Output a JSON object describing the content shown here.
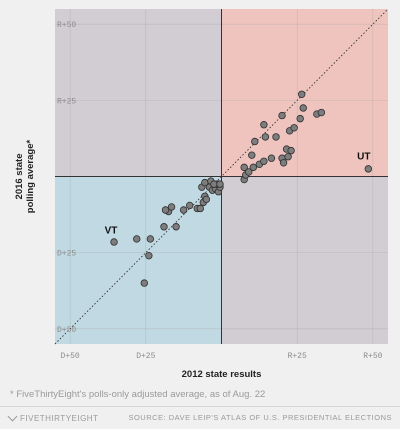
{
  "chart_data": {
    "type": "scatter",
    "xlabel": "2012 state results",
    "ylabel_lines": [
      "2016 state",
      "polling average*"
    ],
    "xlim": [
      -55,
      55
    ],
    "ylim": [
      -55,
      55
    ],
    "x_ticks": [
      {
        "value": -50,
        "label": "D+50"
      },
      {
        "value": -25,
        "label": "D+25"
      },
      {
        "value": 25,
        "label": "R+25"
      },
      {
        "value": 50,
        "label": "R+50"
      }
    ],
    "y_ticks": [
      {
        "value": 50,
        "label": "R+50"
      },
      {
        "value": 25,
        "label": "R+25"
      },
      {
        "value": -25,
        "label": "D+25"
      },
      {
        "value": -50,
        "label": "D+50"
      }
    ],
    "quadrant_colors": {
      "top_left": "#d2cdd2",
      "top_right": "#efc4bf",
      "bottom_left": "#c0d9e3",
      "bottom_right": "#d2cdd2"
    },
    "grid": true,
    "diagonal_reference_line": true,
    "annotations": [
      {
        "label": "UT",
        "x": 48,
        "y": 3
      },
      {
        "label": "VT",
        "x": -35.5,
        "y": -21
      }
    ],
    "points": [
      {
        "x": 48.5,
        "y": 2.5
      },
      {
        "x": -35.5,
        "y": -21.5
      },
      {
        "x": -28,
        "y": -20.5
      },
      {
        "x": -23.5,
        "y": -20.5
      },
      {
        "x": -24,
        "y": -26
      },
      {
        "x": -25.5,
        "y": -35
      },
      {
        "x": -19,
        "y": -16.5
      },
      {
        "x": -15,
        "y": -16.5
      },
      {
        "x": -17.5,
        "y": -11.5
      },
      {
        "x": -16.5,
        "y": -10
      },
      {
        "x": -18.5,
        "y": -11
      },
      {
        "x": -12.5,
        "y": -11
      },
      {
        "x": -10.5,
        "y": -9.5
      },
      {
        "x": -8,
        "y": -10.5
      },
      {
        "x": -7,
        "y": -10.5
      },
      {
        "x": -6,
        "y": -8.5
      },
      {
        "x": -5.5,
        "y": -6.5
      },
      {
        "x": -5,
        "y": -7.5
      },
      {
        "x": -6.5,
        "y": -3.5
      },
      {
        "x": -4,
        "y": -3.5
      },
      {
        "x": -3,
        "y": -4.5
      },
      {
        "x": -2,
        "y": -4
      },
      {
        "x": -1,
        "y": -5
      },
      {
        "x": -0.5,
        "y": -3.5
      },
      {
        "x": -1.5,
        "y": -2.5
      },
      {
        "x": -5.5,
        "y": -2
      },
      {
        "x": -3.5,
        "y": -1.5
      },
      {
        "x": -2.5,
        "y": -2.5
      },
      {
        "x": -0.5,
        "y": -2.5
      },
      {
        "x": 7.5,
        "y": -1
      },
      {
        "x": 8,
        "y": 0.5
      },
      {
        "x": 7.5,
        "y": 3
      },
      {
        "x": 9,
        "y": 1.5
      },
      {
        "x": 10.5,
        "y": 3
      },
      {
        "x": 12.5,
        "y": 4
      },
      {
        "x": 10,
        "y": 7
      },
      {
        "x": 11,
        "y": 11.5
      },
      {
        "x": 14,
        "y": 5
      },
      {
        "x": 14.5,
        "y": 13
      },
      {
        "x": 16.5,
        "y": 6
      },
      {
        "x": 20,
        "y": 6
      },
      {
        "x": 20.5,
        "y": 4.5
      },
      {
        "x": 21.5,
        "y": 9
      },
      {
        "x": 22,
        "y": 6.5
      },
      {
        "x": 23,
        "y": 8.5
      },
      {
        "x": 18,
        "y": 13
      },
      {
        "x": 22.5,
        "y": 15
      },
      {
        "x": 24,
        "y": 16
      },
      {
        "x": 26,
        "y": 19
      },
      {
        "x": 20,
        "y": 20
      },
      {
        "x": 14,
        "y": 17
      },
      {
        "x": 27,
        "y": 22.5
      },
      {
        "x": 26.5,
        "y": 27
      },
      {
        "x": 31.5,
        "y": 20.5
      },
      {
        "x": 33,
        "y": 21
      }
    ]
  },
  "footnote": "* FiveThirtyEight's polls-only adjusted average, as of Aug. 22",
  "footer": {
    "brand": "FIVETHIRTYEIGHT",
    "source": "SOURCE: DAVE LEIP'S ATLAS OF U.S. PRESIDENTIAL ELECTIONS"
  }
}
